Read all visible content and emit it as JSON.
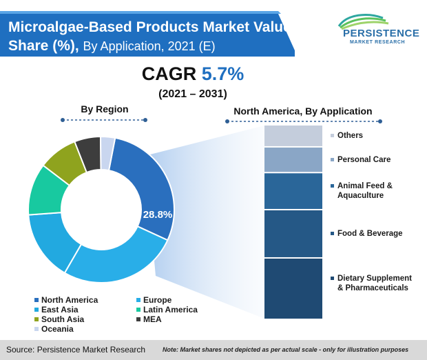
{
  "header": {
    "title_bold": "Microalgae-Based Products Market Value Share (%),",
    "title_thin": "By Application, 2021 (E)"
  },
  "logo": {
    "name": "PERSISTENCE",
    "sub": "MARKET RESEARCH"
  },
  "cagr": {
    "label": "CAGR",
    "value": "5.7%",
    "period": "(2021 – 2031)"
  },
  "chart_data": [
    {
      "type": "pie",
      "title": "By Region",
      "categories": [
        "North America",
        "Europe",
        "East Asia",
        "Latin America",
        "South Asia",
        "MEA",
        "Oceania"
      ],
      "values": [
        28.8,
        26.5,
        15.5,
        11.5,
        8.7,
        5.8,
        3.2
      ],
      "colors": [
        "#2a6fbe",
        "#29aee8",
        "#22a9e0",
        "#18c9a0",
        "#8fa31e",
        "#3d3d3d",
        "#c9d6ef"
      ],
      "donut": true,
      "data_labels": [
        "28.8%",
        "",
        "",
        "",
        "",
        "",
        ""
      ],
      "legend_placement": "bottom"
    },
    {
      "type": "bar",
      "title": "North America, By Application",
      "stacked": true,
      "categories": [
        "North America"
      ],
      "series": [
        {
          "name": "Dietary Supplement & Pharmaceuticals",
          "values": [
            32
          ]
        },
        {
          "name": "Food & Beverage",
          "values": [
            25
          ]
        },
        {
          "name": "Animal Feed & Aquaculture",
          "values": [
            19
          ]
        },
        {
          "name": "Personal Care",
          "values": [
            13
          ]
        },
        {
          "name": "Others",
          "values": [
            11
          ]
        }
      ],
      "colors": [
        "#1f4a73",
        "#255886",
        "#2a6699",
        "#8aa6c6",
        "#c4cddc"
      ],
      "legend_placement": "right"
    }
  ],
  "footer": {
    "source": "Source: Persistence Market Research",
    "note": "Note: Market shares not depicted as per actual scale - only for illustration purposes"
  }
}
